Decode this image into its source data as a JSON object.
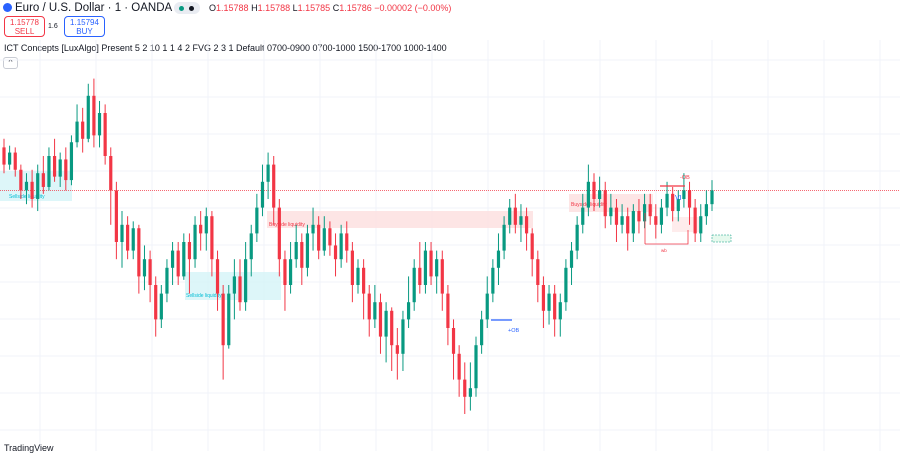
{
  "header": {
    "symbol_title": "Euro / U.S. Dollar · 1 · OANDA",
    "ohlc": {
      "o_label": "O",
      "o": "1.15788",
      "h_label": "H",
      "h": "1.15788",
      "l_label": "L",
      "l": "1.15785",
      "c_label": "C",
      "c": "1.15786",
      "change": "−0.00002 (−0.00%)"
    }
  },
  "trade": {
    "sell_price": "1.15778",
    "sell_label": "SELL",
    "spread": "1.6",
    "buy_price": "1.15794",
    "buy_label": "BUY"
  },
  "indicator": {
    "label": "ICT Concepts [LuxAlgo] Present 5 2 10 1 1 4 2 FVG 2 3 1 Default 0700-0900 0700-1000 1500-1700 1000-1400",
    "collapse_icon": "chevron-up-icon"
  },
  "annotations": {
    "sellside_liq_1": "Sellside liquidity",
    "sellside_liq_2": "Sellside liquidity",
    "buyside_liq_1": "Buyside liquidity",
    "buyside_liq_2": "Buyside liquidity",
    "ob_plus": "+OB",
    "ob_minus": "-OB",
    "vi": "VI",
    "wb": "wb"
  },
  "footer": {
    "text": "TradingView"
  },
  "colors": {
    "up": "#089981",
    "down": "#f23645",
    "price_line": "#f23645",
    "bearish_zone": "#fde0e0",
    "bullish_zone": "#d4f4f8"
  },
  "chart_data": {
    "type": "candlestick",
    "title": "Euro / U.S. Dollar · 1 · OANDA",
    "grid": true,
    "candles": [
      [
        0.55,
        0.45,
        0.6,
        0.4
      ],
      [
        0.45,
        0.52,
        0.56,
        0.42
      ],
      [
        0.52,
        0.42,
        0.55,
        0.38
      ],
      [
        0.42,
        0.3,
        0.45,
        0.25
      ],
      [
        0.3,
        0.35,
        0.4,
        0.22
      ],
      [
        0.35,
        0.25,
        0.42,
        0.2
      ],
      [
        0.25,
        0.4,
        0.45,
        0.18
      ],
      [
        0.4,
        0.32,
        0.5,
        0.28
      ],
      [
        0.32,
        0.5,
        0.55,
        0.3
      ],
      [
        0.5,
        0.38,
        0.6,
        0.35
      ],
      [
        0.38,
        0.48,
        0.52,
        0.32
      ],
      [
        0.48,
        0.36,
        0.55,
        0.3
      ],
      [
        0.36,
        0.58,
        0.62,
        0.33
      ],
      [
        0.58,
        0.7,
        0.8,
        0.55
      ],
      [
        0.7,
        0.6,
        0.78,
        0.52
      ],
      [
        0.6,
        0.85,
        0.92,
        0.58
      ],
      [
        0.85,
        0.62,
        0.95,
        0.55
      ],
      [
        0.62,
        0.75,
        0.82,
        0.55
      ],
      [
        0.75,
        0.5,
        0.8,
        0.45
      ],
      [
        0.5,
        0.3,
        0.55,
        0.1
      ],
      [
        0.3,
        0.0,
        0.35,
        -0.1
      ],
      [
        0.0,
        0.1,
        0.18,
        -0.15
      ],
      [
        0.1,
        -0.05,
        0.15,
        -0.1
      ],
      [
        -0.05,
        0.08,
        0.12,
        -0.1
      ],
      [
        0.08,
        -0.2,
        0.1,
        -0.3
      ],
      [
        -0.2,
        -0.1,
        -0.02,
        -0.28
      ],
      [
        -0.1,
        -0.25,
        -0.05,
        -0.35
      ],
      [
        -0.25,
        -0.45,
        -0.2,
        -0.55
      ],
      [
        -0.45,
        -0.3,
        -0.25,
        -0.5
      ],
      [
        -0.3,
        -0.15,
        -0.1,
        -0.35
      ],
      [
        -0.15,
        -0.05,
        0.0,
        -0.25
      ],
      [
        -0.05,
        -0.2,
        0.0,
        -0.25
      ],
      [
        -0.2,
        0.0,
        0.05,
        -0.22
      ],
      [
        0.0,
        -0.1,
        0.05,
        -0.3
      ],
      [
        -0.1,
        0.1,
        0.15,
        -0.15
      ],
      [
        0.1,
        0.05,
        0.18,
        -0.05
      ],
      [
        0.05,
        0.15,
        0.2,
        -0.05
      ],
      [
        0.15,
        -0.1,
        0.18,
        -0.2
      ],
      [
        -0.1,
        -0.3,
        -0.05,
        -0.4
      ],
      [
        -0.3,
        -0.6,
        -0.25,
        -0.8
      ],
      [
        -0.6,
        -0.3,
        -0.25,
        -0.62
      ],
      [
        -0.3,
        -0.2,
        -0.1,
        -0.45
      ],
      [
        -0.2,
        -0.35,
        -0.1,
        -0.4
      ],
      [
        -0.35,
        -0.1,
        0.0,
        -0.4
      ],
      [
        -0.1,
        0.05,
        0.1,
        -0.2
      ],
      [
        0.05,
        0.2,
        0.28,
        0.0
      ],
      [
        0.2,
        0.35,
        0.45,
        0.15
      ],
      [
        0.35,
        0.45,
        0.52,
        0.25
      ],
      [
        0.45,
        0.2,
        0.5,
        0.1
      ],
      [
        0.2,
        -0.1,
        0.25,
        -0.2
      ],
      [
        -0.1,
        -0.25,
        -0.05,
        -0.4
      ],
      [
        -0.25,
        -0.1,
        0.0,
        -0.3
      ],
      [
        -0.1,
        0.0,
        0.1,
        -0.15
      ],
      [
        0.0,
        -0.15,
        0.05,
        -0.25
      ],
      [
        -0.15,
        0.05,
        0.1,
        -0.2
      ],
      [
        0.05,
        0.1,
        0.2,
        -0.05
      ],
      [
        0.1,
        -0.05,
        0.15,
        -0.1
      ],
      [
        -0.05,
        0.08,
        0.15,
        -0.08
      ],
      [
        0.08,
        -0.02,
        0.12,
        -0.08
      ],
      [
        -0.02,
        -0.1,
        0.05,
        -0.2
      ],
      [
        -0.1,
        0.05,
        0.1,
        -0.15
      ],
      [
        0.05,
        -0.05,
        0.12,
        -0.12
      ],
      [
        -0.05,
        -0.25,
        0.0,
        -0.35
      ],
      [
        -0.25,
        -0.15,
        -0.1,
        -0.3
      ],
      [
        -0.15,
        -0.3,
        -0.1,
        -0.45
      ],
      [
        -0.3,
        -0.45,
        -0.25,
        -0.55
      ],
      [
        -0.45,
        -0.35,
        -0.25,
        -0.5
      ],
      [
        -0.35,
        -0.55,
        -0.3,
        -0.65
      ],
      [
        -0.55,
        -0.4,
        -0.35,
        -0.7
      ],
      [
        -0.4,
        -0.6,
        -0.38,
        -0.75
      ],
      [
        -0.6,
        -0.65,
        -0.5,
        -0.8
      ],
      [
        -0.65,
        -0.45,
        -0.4,
        -0.75
      ],
      [
        -0.45,
        -0.35,
        -0.2,
        -0.5
      ],
      [
        -0.35,
        -0.15,
        -0.1,
        -0.4
      ],
      [
        -0.15,
        -0.25,
        0.0,
        -0.3
      ],
      [
        -0.25,
        -0.05,
        0.0,
        -0.3
      ],
      [
        -0.05,
        -0.2,
        0.0,
        -0.25
      ],
      [
        -0.2,
        -0.1,
        -0.05,
        -0.3
      ],
      [
        -0.1,
        -0.3,
        -0.05,
        -0.4
      ],
      [
        -0.3,
        -0.5,
        -0.25,
        -0.6
      ],
      [
        -0.5,
        -0.65,
        -0.45,
        -0.8
      ],
      [
        -0.65,
        -0.8,
        -0.6,
        -0.9
      ],
      [
        -0.8,
        -0.9,
        -0.7,
        -1.0
      ],
      [
        -0.9,
        -0.85,
        -0.7,
        -0.98
      ],
      [
        -0.85,
        -0.6,
        -0.55,
        -0.9
      ],
      [
        -0.6,
        -0.45,
        -0.4,
        -0.65
      ],
      [
        -0.45,
        -0.3,
        -0.2,
        -0.5
      ],
      [
        -0.3,
        -0.15,
        -0.1,
        -0.35
      ],
      [
        -0.15,
        -0.05,
        0.05,
        -0.25
      ],
      [
        -0.05,
        0.1,
        0.15,
        -0.1
      ],
      [
        0.1,
        0.2,
        0.25,
        0.05
      ],
      [
        0.2,
        0.1,
        0.28,
        0.05
      ],
      [
        0.1,
        0.15,
        0.22,
        0.0
      ],
      [
        0.15,
        0.05,
        0.2,
        -0.05
      ],
      [
        0.05,
        -0.1,
        0.08,
        -0.2
      ],
      [
        -0.1,
        -0.25,
        -0.05,
        -0.35
      ],
      [
        -0.25,
        -0.4,
        -0.2,
        -0.5
      ],
      [
        -0.4,
        -0.3,
        -0.25,
        -0.48
      ],
      [
        -0.3,
        -0.45,
        -0.25,
        -0.55
      ],
      [
        -0.45,
        -0.35,
        -0.3,
        -0.55
      ],
      [
        -0.35,
        -0.15,
        -0.1,
        -0.4
      ],
      [
        -0.15,
        -0.05,
        0.0,
        -0.25
      ],
      [
        -0.05,
        0.1,
        0.15,
        -0.1
      ],
      [
        0.1,
        0.2,
        0.28,
        0.05
      ],
      [
        0.2,
        0.35,
        0.45,
        0.15
      ],
      [
        0.35,
        0.25,
        0.4,
        0.18
      ],
      [
        0.25,
        0.3,
        0.38,
        0.2
      ],
      [
        0.3,
        0.15,
        0.35,
        0.08
      ],
      [
        0.15,
        0.2,
        0.28,
        0.1
      ],
      [
        0.2,
        0.1,
        0.25,
        0.0
      ],
      [
        0.1,
        0.15,
        0.22,
        0.05
      ],
      [
        0.15,
        0.05,
        0.2,
        -0.05
      ],
      [
        0.05,
        0.18,
        0.22,
        0.0
      ],
      [
        0.18,
        0.12,
        0.25,
        0.05
      ],
      [
        0.12,
        0.22,
        0.28,
        0.08
      ],
      [
        0.22,
        0.15,
        0.28,
        0.1
      ],
      [
        0.15,
        0.1,
        0.22,
        0.02
      ],
      [
        0.1,
        0.2,
        0.25,
        0.05
      ],
      [
        0.2,
        0.28,
        0.35,
        0.15
      ],
      [
        0.28,
        0.18,
        0.32,
        0.12
      ],
      [
        0.18,
        0.25,
        0.3,
        0.12
      ],
      [
        0.25,
        0.3,
        0.4,
        0.2
      ],
      [
        0.3,
        0.2,
        0.35,
        0.1
      ],
      [
        0.2,
        0.05,
        0.25,
        0.0
      ],
      [
        0.05,
        0.15,
        0.22,
        0.0
      ],
      [
        0.15,
        0.22,
        0.3,
        0.1
      ],
      [
        0.22,
        0.3,
        0.36,
        0.18
      ]
    ],
    "price_line": 0.3,
    "zones": [
      {
        "label": "Sellside liquidity",
        "kind": "bullish"
      },
      {
        "label": "Sellside liquidity",
        "kind": "bullish"
      },
      {
        "label": "Buyside liquidity",
        "kind": "bearish"
      },
      {
        "label": "Buyside liquidity",
        "kind": "bearish"
      }
    ]
  }
}
